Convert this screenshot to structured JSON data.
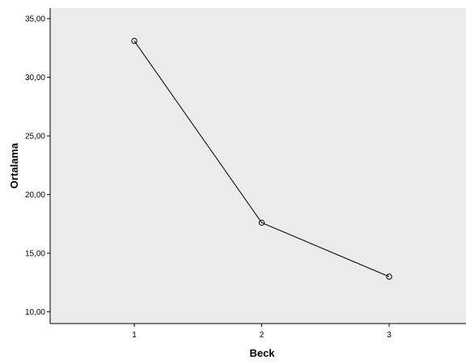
{
  "chart_data": {
    "type": "line",
    "title": "",
    "xlabel": "Beck",
    "ylabel": "Ortalama",
    "x": [
      1,
      2,
      3
    ],
    "x_tick_labels": [
      "1",
      "2",
      "3"
    ],
    "series": [
      {
        "name": "",
        "values": [
          33.1,
          17.6,
          13.0
        ]
      }
    ],
    "ylim": [
      9.0,
      35.9
    ],
    "y_ticks": [
      10,
      15,
      20,
      25,
      30,
      35
    ],
    "y_tick_labels": [
      "10,00",
      "15,00",
      "20,00",
      "25,00",
      "30,00",
      "35,00"
    ],
    "marker": "open-circle",
    "grid": false,
    "legend": "none",
    "colors": {
      "plot_background": "#ebebeb",
      "line": "#000000",
      "axis": "#000000"
    }
  }
}
